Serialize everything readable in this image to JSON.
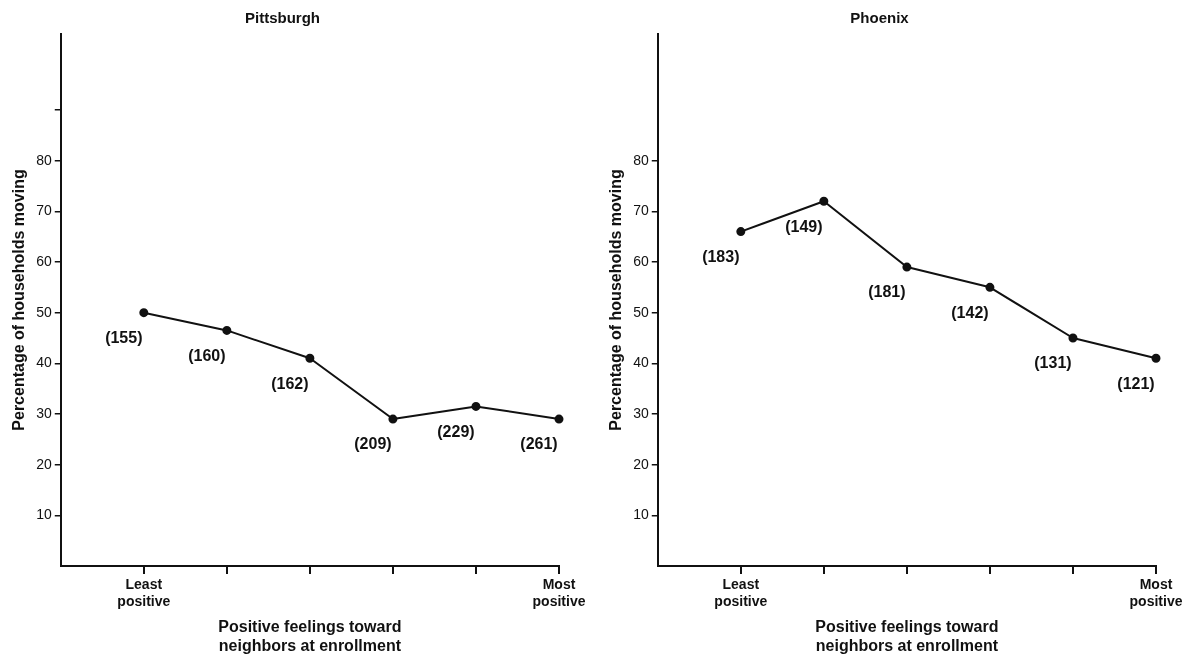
{
  "chart_data": [
    {
      "type": "line",
      "title": "Pittsburgh",
      "xlabel": "Positive feelings toward neighbors at enrollment",
      "ylabel": "Percentage of households moving",
      "categories": [
        "Least positive",
        null,
        null,
        null,
        null,
        "Most positive"
      ],
      "series": [
        {
          "color": "#111111",
          "values": [
            50,
            46.5,
            41,
            29,
            31.5,
            29
          ]
        }
      ],
      "annotations": [
        "(155)",
        "(160)",
        "(162)",
        "(209)",
        "(229)",
        "(261)"
      ],
      "ylim": [
        0,
        105
      ],
      "yticks": [
        10,
        20,
        30,
        40,
        50,
        60,
        70,
        80,
        {
          "value": 90,
          "label": null
        }
      ],
      "grid": false,
      "legend": false,
      "marker": "circle",
      "line_style": "solid"
    },
    {
      "type": "line",
      "title": "Phoenix",
      "xlabel": "Positive feelings toward neighbors at enrollment",
      "ylabel": "Percentage of households moving",
      "categories": [
        "Least positive",
        null,
        null,
        null,
        null,
        "Most positive"
      ],
      "series": [
        {
          "color": "#111111",
          "values": [
            66,
            72,
            59,
            55,
            45,
            41
          ]
        }
      ],
      "annotations": [
        "(183)",
        "(149)",
        "(181)",
        "(142)",
        "(131)",
        "(121)"
      ],
      "ylim": [
        0,
        105
      ],
      "yticks": [
        10,
        20,
        30,
        40,
        50,
        60,
        70,
        80
      ],
      "grid": false,
      "legend": false,
      "marker": "circle",
      "line_style": "solid"
    }
  ]
}
